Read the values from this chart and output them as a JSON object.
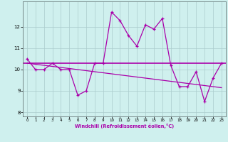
{
  "xlabel": "Windchill (Refroidissement éolien,°C)",
  "background_color": "#cff0ee",
  "grid_color": "#aacccc",
  "line_color": "#aa00aa",
  "x_hours": [
    0,
    1,
    2,
    3,
    4,
    5,
    6,
    7,
    8,
    9,
    10,
    11,
    12,
    13,
    14,
    15,
    16,
    17,
    18,
    19,
    20,
    21,
    22,
    23
  ],
  "y_main": [
    10.5,
    10.0,
    10.0,
    10.3,
    10.0,
    10.0,
    8.8,
    9.0,
    10.3,
    10.3,
    12.7,
    12.3,
    11.6,
    11.1,
    12.1,
    11.9,
    12.4,
    10.2,
    9.2,
    9.2,
    9.9,
    8.5,
    9.6,
    10.3
  ],
  "y_flat": 10.3,
  "y_reg_start": 10.3,
  "y_reg_end": 9.15,
  "ylim": [
    7.8,
    13.2
  ],
  "xlim": [
    -0.5,
    23.5
  ],
  "yticks": [
    8,
    9,
    10,
    11,
    12
  ],
  "xticks": [
    0,
    1,
    2,
    3,
    4,
    5,
    6,
    7,
    8,
    9,
    10,
    11,
    12,
    13,
    14,
    15,
    16,
    17,
    18,
    19,
    20,
    21,
    22,
    23
  ]
}
